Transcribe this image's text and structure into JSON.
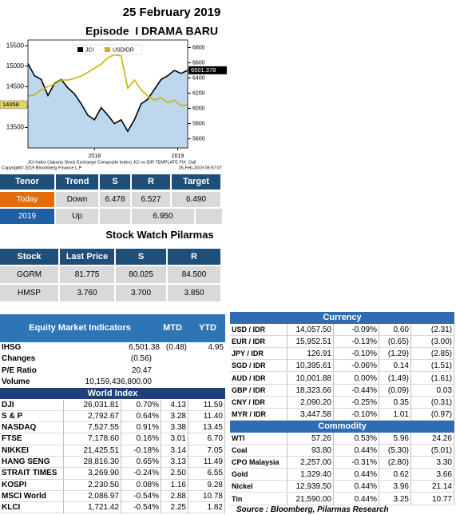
{
  "header": {
    "date": "25 February 2019",
    "episode": "Episode  I DRAMA BARU"
  },
  "chart_data": {
    "type": "line",
    "x": [
      2017.2,
      2017.28,
      2017.36,
      2017.44,
      2017.52,
      2017.6,
      2017.68,
      2017.76,
      2017.84,
      2017.92,
      2018,
      2018.08,
      2018.16,
      2018.24,
      2018.32,
      2018.4,
      2018.48,
      2018.56,
      2018.64,
      2018.72,
      2018.8,
      2018.88,
      2018.96,
      2019.04,
      2019.12
    ],
    "series": [
      {
        "name": "JCI",
        "color": "#000000",
        "axis": "y2",
        "area_color": "#bdd7ee",
        "values": [
          6590,
          6430,
          6380,
          6170,
          6330,
          6380,
          6270,
          6190,
          6060,
          5910,
          5850,
          6010,
          5910,
          5800,
          5850,
          5700,
          5850,
          6060,
          6120,
          6250,
          6380,
          6430,
          6500,
          6460,
          6501.378
        ]
      },
      {
        "name": "USDIDR",
        "color": "#c9b400",
        "values": [
          14270,
          14300,
          14420,
          14500,
          14560,
          14660,
          14660,
          14700,
          14760,
          14850,
          14950,
          15050,
          15210,
          15280,
          15250,
          14460,
          14660,
          14420,
          14270,
          14170,
          14230,
          14110,
          14170,
          14030,
          14058
        ]
      }
    ],
    "xlim": [
      2017.2,
      2019.12
    ],
    "xticks": [
      2018,
      2019
    ],
    "ylim": [
      13000,
      15640
    ],
    "yticks": [
      13500,
      14000,
      14500,
      15000,
      15500
    ],
    "y2lim": [
      5480,
      6900
    ],
    "y2ticks": [
      5600,
      5800,
      6000,
      6200,
      6400,
      6600,
      6800
    ],
    "caption": [
      "JCI Index (Jakarta Stock Exchange Composite Index) JCI vs IDR TEMPLATE FIX  Dail",
      "Copyright© 2019 Bloomberg Finance L.P.",
      "25-Feb-2019 05:57:07"
    ]
  },
  "tenor_table": {
    "headers": [
      "Tenor",
      "Trend",
      "S",
      "R",
      "Target"
    ],
    "rows": [
      [
        "Today",
        "Down",
        "6.478",
        "6.527",
        "6.490"
      ],
      [
        "2019",
        "Up",
        "6.950"
      ]
    ]
  },
  "stock_watch": {
    "title": "Stock Watch Pilarmas",
    "headers": [
      "Stock",
      "Last Price",
      "S",
      "R"
    ],
    "rows": [
      [
        "GGRM",
        "81.775",
        "80.025",
        "84.500"
      ],
      [
        "HMSP",
        "3.760",
        "3.700",
        "3.850"
      ]
    ]
  },
  "equity": {
    "title": "Equity Market Indicators",
    "headers": [
      "MTD",
      "YTD"
    ],
    "rows": [
      [
        "IHSG",
        "6,501.38",
        "(0.48)",
        "4.95"
      ],
      [
        "Changes",
        "(0.56)"
      ],
      [
        "P/E Ratio",
        "20.47"
      ],
      [
        "Volume",
        "10,159,436,800.00"
      ]
    ],
    "world_title": "World Index",
    "world_rows": [
      [
        "DJI",
        "26,031.81",
        "0.70%",
        "4.13",
        "11.59"
      ],
      [
        "S & P",
        "2,792.67",
        "0.64%",
        "3.28",
        "11.40"
      ],
      [
        "NASDAQ",
        "7,527.55",
        "0.91%",
        "3.38",
        "13.45"
      ],
      [
        "FTSE",
        "7,178.60",
        "0.16%",
        "3.01",
        "6.70"
      ],
      [
        "NIKKEI",
        "21,425.51",
        "-0.18%",
        "3.14",
        "7.05"
      ],
      [
        "HANG SENG",
        "28,816.30",
        "0.65%",
        "3.13",
        "11.49"
      ],
      [
        "STRAIT TIMES",
        "3,269.90",
        "-0.24%",
        "2.50",
        "6.55"
      ],
      [
        "KOSPI",
        "2,230.50",
        "0.08%",
        "1.16",
        "9.28"
      ],
      [
        "MSCI World",
        "2,086.97",
        "-0.54%",
        "2.88",
        "10.78"
      ],
      [
        "KLCI",
        "1,721.42",
        "-0.54%",
        "2.25",
        "1.82"
      ]
    ]
  },
  "currency": {
    "title": "Currency",
    "rows": [
      [
        "USD / IDR",
        "14,057.50",
        "-0.09%",
        "0.60",
        "(2.31)"
      ],
      [
        "EUR / IDR",
        "15,952.51",
        "-0.13%",
        "(0.65)",
        "(3.00)"
      ],
      [
        "JPY / IDR",
        "126.91",
        "-0.10%",
        "(1.29)",
        "(2.85)"
      ],
      [
        "SGD / IDR",
        "10,395.61",
        "-0.06%",
        "0.14",
        "(1.51)"
      ],
      [
        "AUD / IDR",
        "10,001.88",
        "0.00%",
        "(1.49)",
        "(1.61)"
      ],
      [
        "GBP / IDR",
        "18,323.66",
        "-0.44%",
        "(0.09)",
        "0.03"
      ],
      [
        "CNY / IDR",
        "2,090.20",
        "-0.25%",
        "0.35",
        "(0.31)"
      ],
      [
        "MYR / IDR",
        "3,447.58",
        "-0.10%",
        "1.01",
        "(0.97)"
      ]
    ]
  },
  "commodity": {
    "title": "Commodity",
    "rows": [
      [
        "WTI",
        "57.26",
        "0.53%",
        "5.96",
        "24.26"
      ],
      [
        "Coal",
        "93.80",
        "0.44%",
        "(5.30)",
        "(5.01)"
      ],
      [
        "CPO Malaysia",
        "2,257.00",
        "-0.31%",
        "(2.80)",
        "3.30"
      ],
      [
        "Gold",
        "1,329.40",
        "0.44%",
        "0.62",
        "3.66"
      ],
      [
        "Nickel",
        "12,939.50",
        "0.44%",
        "3.96",
        "21.14"
      ],
      [
        "Tin",
        "21,590.00",
        "0.44%",
        "3.25",
        "10.77"
      ]
    ]
  },
  "source": "Source : Bloomberg, Pilarmas Research"
}
